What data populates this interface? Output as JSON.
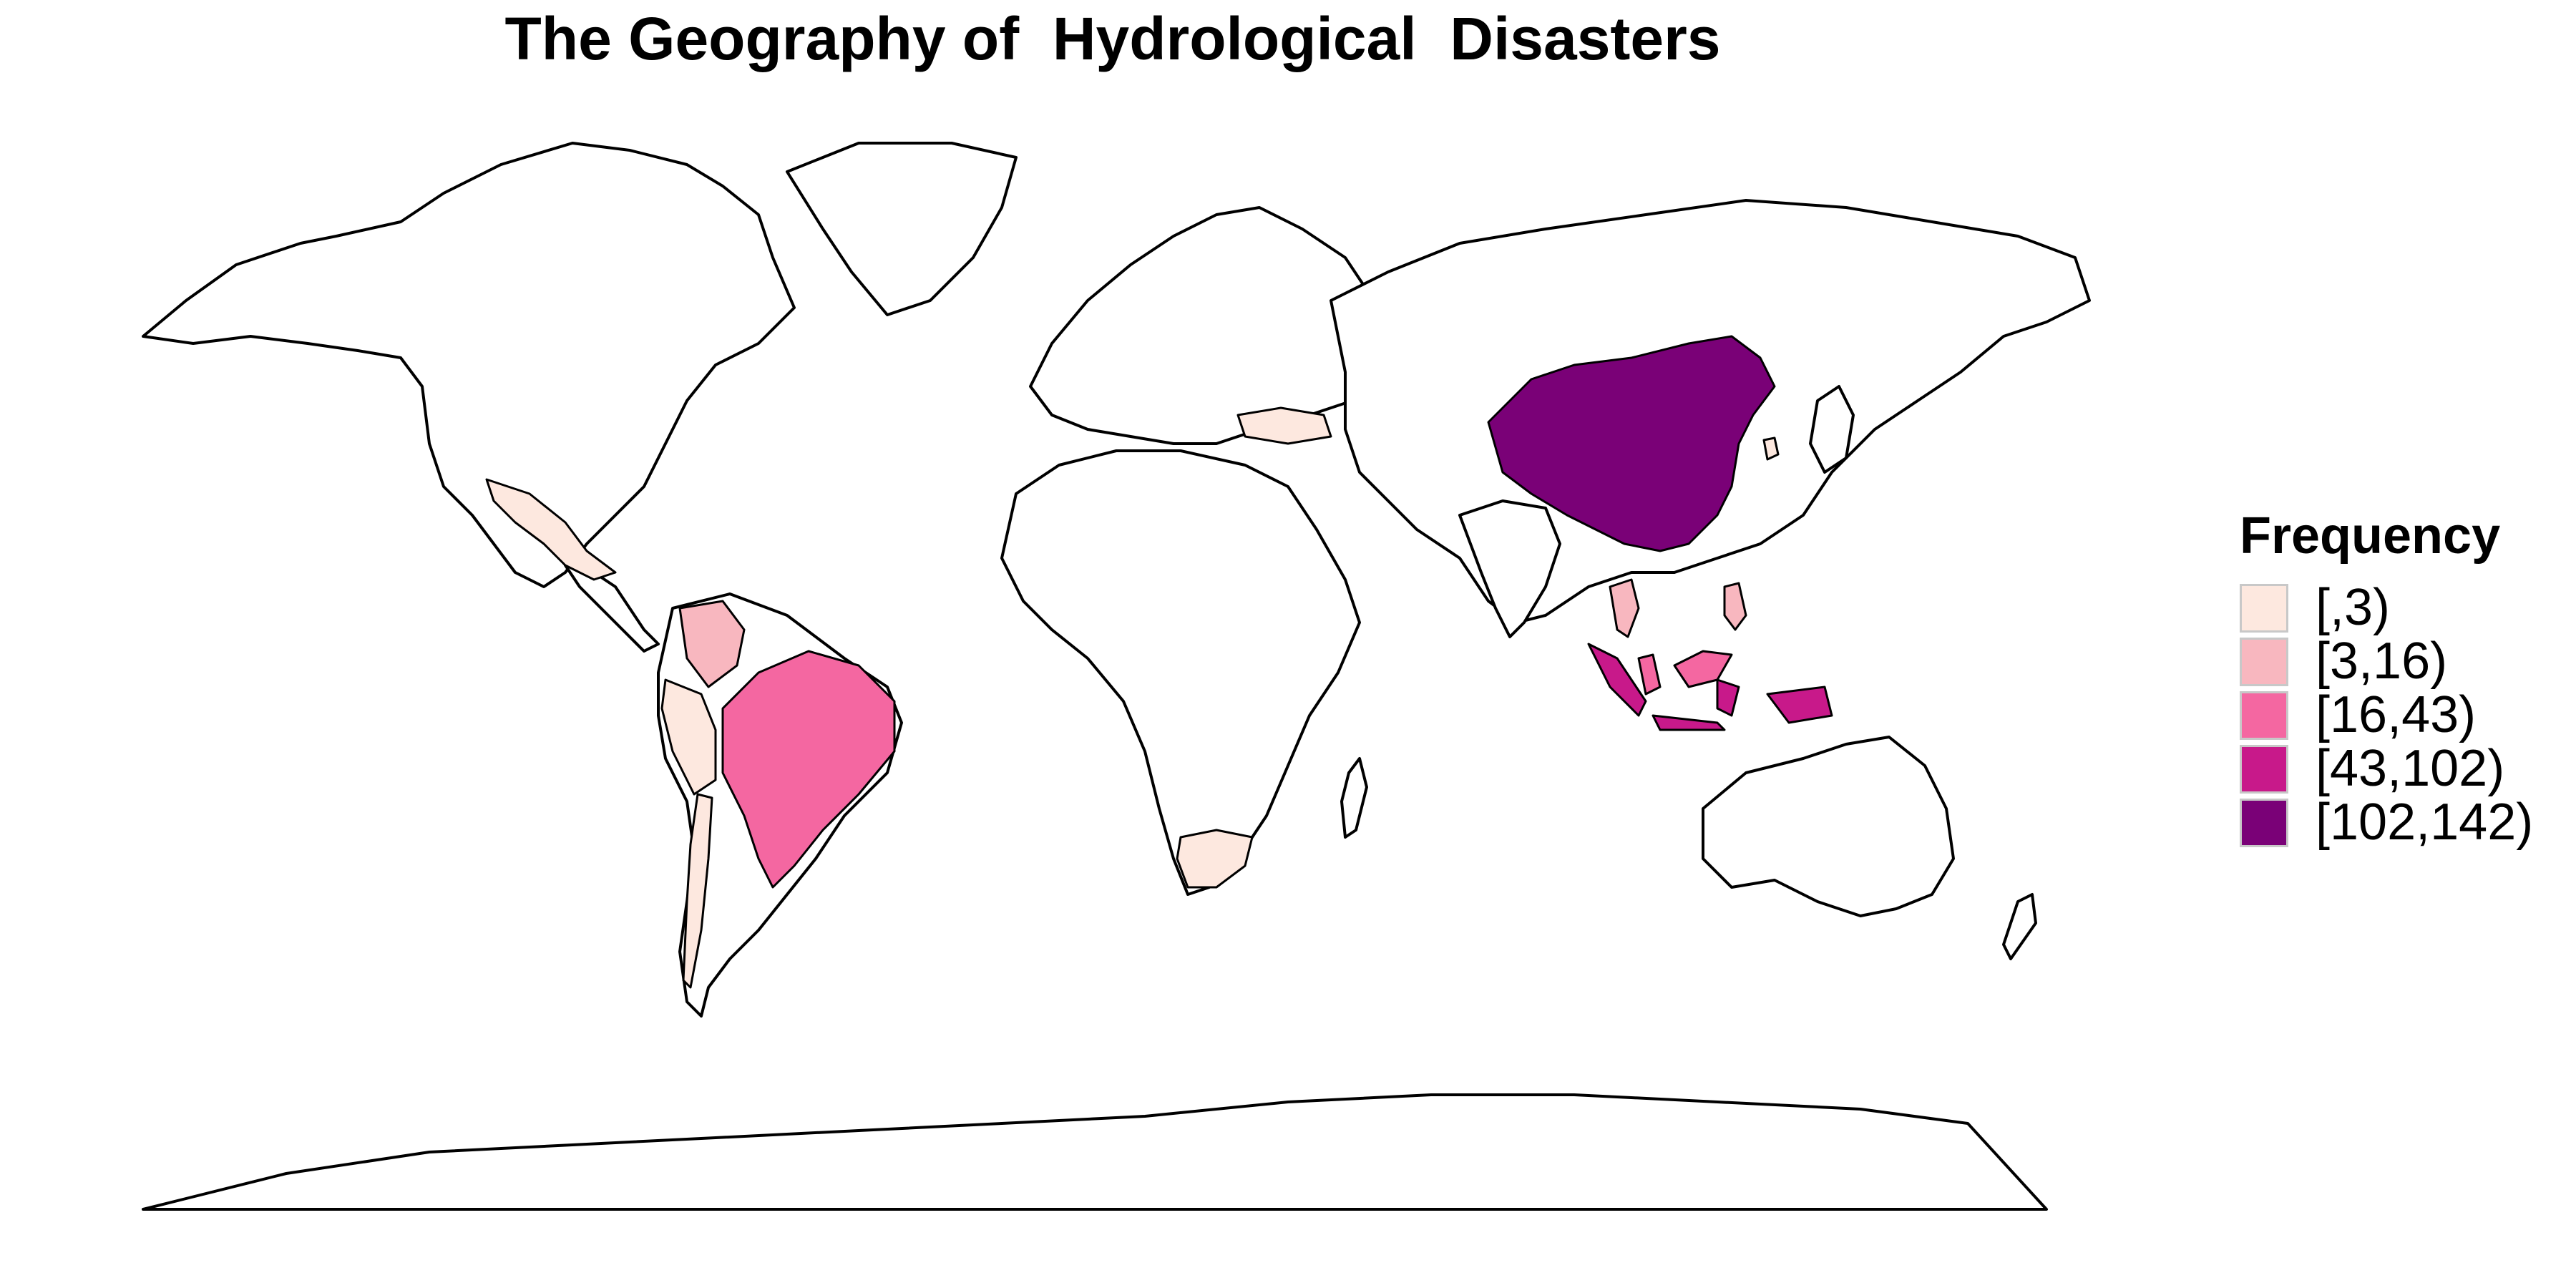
{
  "title": "The Geography of  Hydrological  Disasters",
  "legend": {
    "title": "Frequency",
    "items": [
      {
        "label": "[,3)",
        "color": "#fde8df"
      },
      {
        "label": "[3,16)",
        "color": "#f8b7bf"
      },
      {
        "label": "[16,43)",
        "color": "#f467a1"
      },
      {
        "label": "[43,102)",
        "color": "#c8198a"
      },
      {
        "label": "[102,142)",
        "color": "#7a0177"
      }
    ]
  },
  "chart_data": {
    "type": "choropleth",
    "title": "The Geography of  Hydrological  Disasters",
    "legend_title": "Frequency",
    "legend_position": "right",
    "classes": [
      "[,3)",
      "[3,16)",
      "[16,43)",
      "[43,102)",
      "[102,142)"
    ],
    "regions": [
      {
        "name": "China",
        "class": "[102,142)"
      },
      {
        "name": "Indonesia",
        "class": "[43,102)"
      },
      {
        "name": "Malaysia",
        "class": "[16,43)"
      },
      {
        "name": "Brazil",
        "class": "[16,43)"
      },
      {
        "name": "Colombia",
        "class": "[3,16)"
      },
      {
        "name": "Thailand",
        "class": "[3,16)"
      },
      {
        "name": "Philippines",
        "class": "[3,16)"
      },
      {
        "name": "Mexico",
        "class": "[,3)"
      },
      {
        "name": "Peru",
        "class": "[,3)"
      },
      {
        "name": "Chile",
        "class": "[,3)"
      },
      {
        "name": "South Africa",
        "class": "[,3)"
      },
      {
        "name": "Turkey",
        "class": "[,3)"
      },
      {
        "name": "South Korea",
        "class": "[,3)"
      }
    ]
  }
}
